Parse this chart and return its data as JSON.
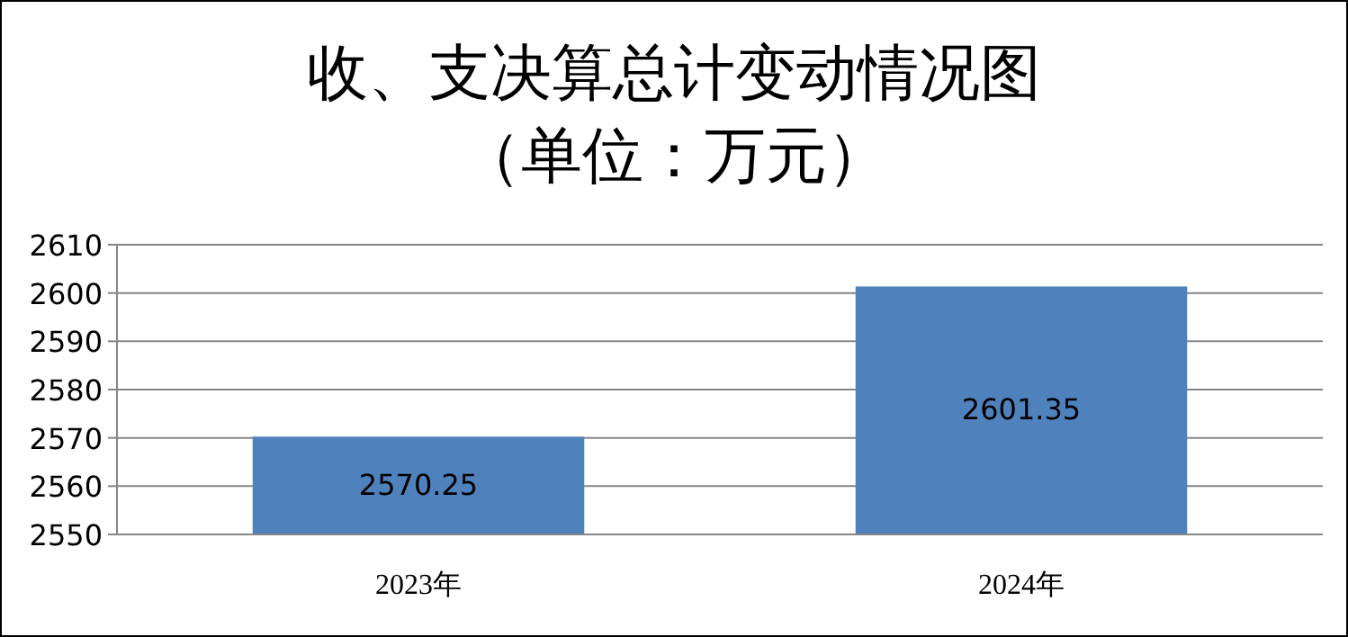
{
  "chart_data": {
    "type": "bar",
    "title": "收、支决算总计变动情况图",
    "subtitle": "（单位：万元）",
    "categories": [
      "2023年",
      "2024年"
    ],
    "values": [
      2570.25,
      2601.35
    ],
    "color": "#4f81bd",
    "ylim": [
      2550,
      2610
    ],
    "yticks": [
      2550,
      2560,
      2570,
      2580,
      2590,
      2600,
      2610
    ],
    "grid": "y",
    "data_labels": true
  }
}
